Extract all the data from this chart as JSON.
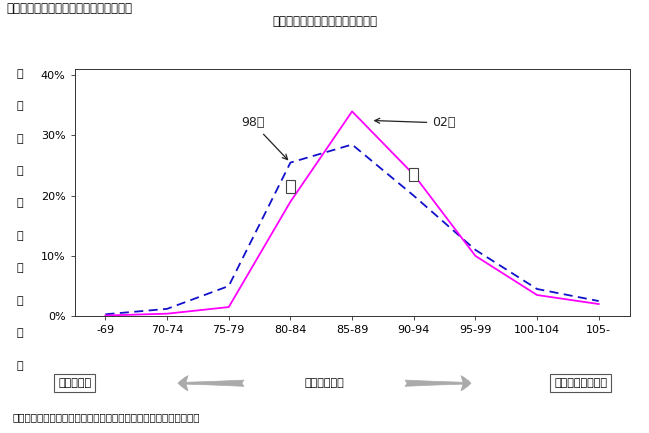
{
  "title": "第２－３－２図　経常収支比率の分布図",
  "subtitle": "多くの市区で財政の柔軟性は低下",
  "footnote": "（備考）　総務省自治財政局「市町村別決算状況調」により作成。",
  "xlabel": "経常収支比率",
  "ylabel_chars": [
    "サ",
    "ン",
    "プ",
    "ル",
    "に",
    "占",
    "め",
    "る",
    "割",
    "合"
  ],
  "categories": [
    "-69",
    "70-74",
    "75-79",
    "80-84",
    "85-89",
    "90-94",
    "95-99",
    "100-104",
    "105-"
  ],
  "x_positions": [
    0,
    1,
    2,
    3,
    4,
    5,
    6,
    7,
    8
  ],
  "line98_values": [
    0.3,
    1.2,
    5.0,
    25.5,
    28.5,
    20.0,
    11.0,
    4.5,
    2.5
  ],
  "line02_values": [
    0.1,
    0.4,
    1.5,
    19.0,
    34.0,
    23.5,
    10.0,
    3.5,
    2.0
  ],
  "line98_color": "#1111CC",
  "line02_color": "#FF00FF",
  "annotation_98_text": "98年",
  "annotation_02_text": "02年",
  "ylim": [
    0,
    41
  ],
  "yticks": [
    0,
    10,
    20,
    30,
    40
  ],
  "ytick_labels": [
    "0%",
    "10%",
    "20%",
    "30%",
    "40%"
  ],
  "background_color": "#ffffff",
  "label_good": "財政は良好",
  "label_bad": "財政は余裕がない"
}
